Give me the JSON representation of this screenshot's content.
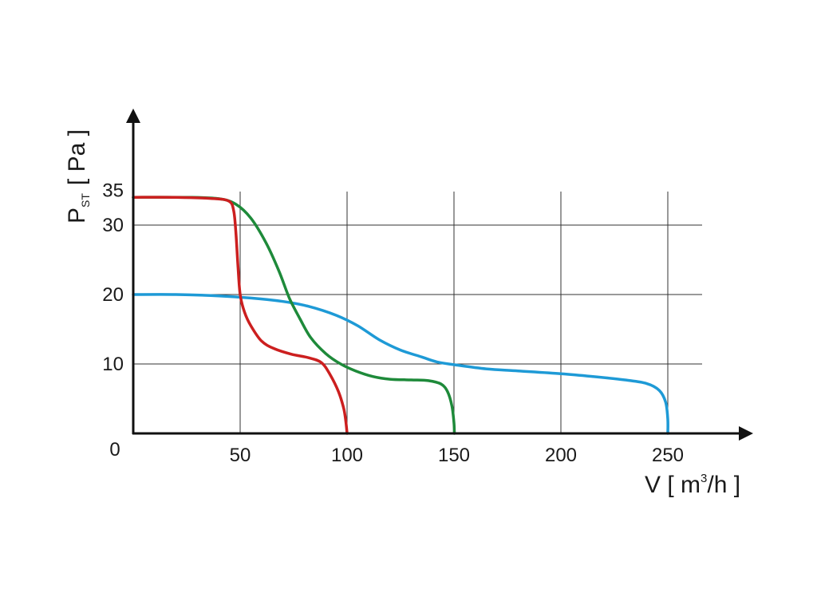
{
  "chart_data": {
    "type": "line",
    "xlabel": {
      "main": "V [ m",
      "sup": "3",
      "tail": "/h ]"
    },
    "ylabel": {
      "main": "P",
      "sub": "ST",
      "tail": "[ Pa ]"
    },
    "x_ticks": [
      "50",
      "100",
      "150",
      "200",
      "250"
    ],
    "y_ticks": [
      "10",
      "20",
      "30",
      "35"
    ],
    "origin_label": "0",
    "xlim": [
      0,
      265
    ],
    "ylim": [
      0,
      39
    ],
    "grid": true,
    "series": [
      {
        "color": "#cc1f1f",
        "points": [
          [
            0,
            34
          ],
          [
            20,
            34
          ],
          [
            38,
            33.8
          ],
          [
            45,
            33.4
          ],
          [
            47,
            32
          ],
          [
            48,
            29
          ],
          [
            49,
            24
          ],
          [
            50,
            20
          ],
          [
            52,
            17.5
          ],
          [
            55,
            15.5
          ],
          [
            60,
            13.3
          ],
          [
            66,
            12.2
          ],
          [
            74,
            11.4
          ],
          [
            82,
            10.9
          ],
          [
            88,
            10.2
          ],
          [
            92,
            8.5
          ],
          [
            96,
            6
          ],
          [
            98.5,
            3.5
          ],
          [
            99.5,
            1.5
          ],
          [
            100,
            0
          ]
        ]
      },
      {
        "color": "#1e8a3a",
        "points": [
          [
            0,
            34
          ],
          [
            25,
            34
          ],
          [
            40,
            33.8
          ],
          [
            48,
            33
          ],
          [
            55,
            31
          ],
          [
            62,
            27.5
          ],
          [
            68,
            23.5
          ],
          [
            73,
            19.5
          ],
          [
            78,
            16.5
          ],
          [
            83,
            13.8
          ],
          [
            90,
            11.5
          ],
          [
            97,
            10
          ],
          [
            104,
            9
          ],
          [
            112,
            8.2
          ],
          [
            120,
            7.8
          ],
          [
            130,
            7.7
          ],
          [
            138,
            7.6
          ],
          [
            144,
            7.1
          ],
          [
            147,
            6
          ],
          [
            149,
            4
          ],
          [
            150,
            1.5
          ],
          [
            150.2,
            0
          ]
        ]
      },
      {
        "color": "#1e9ad6",
        "points": [
          [
            0,
            20
          ],
          [
            20,
            20
          ],
          [
            40,
            19.8
          ],
          [
            55,
            19.5
          ],
          [
            70,
            19
          ],
          [
            82,
            18.3
          ],
          [
            95,
            17
          ],
          [
            105,
            15.5
          ],
          [
            115,
            13.5
          ],
          [
            125,
            12
          ],
          [
            135,
            11
          ],
          [
            142,
            10.3
          ],
          [
            150,
            9.9
          ],
          [
            165,
            9.3
          ],
          [
            180,
            9
          ],
          [
            200,
            8.6
          ],
          [
            215,
            8.2
          ],
          [
            230,
            7.7
          ],
          [
            240,
            7.2
          ],
          [
            246,
            6.2
          ],
          [
            249,
            4.5
          ],
          [
            250,
            2
          ],
          [
            250,
            0
          ]
        ]
      }
    ]
  }
}
